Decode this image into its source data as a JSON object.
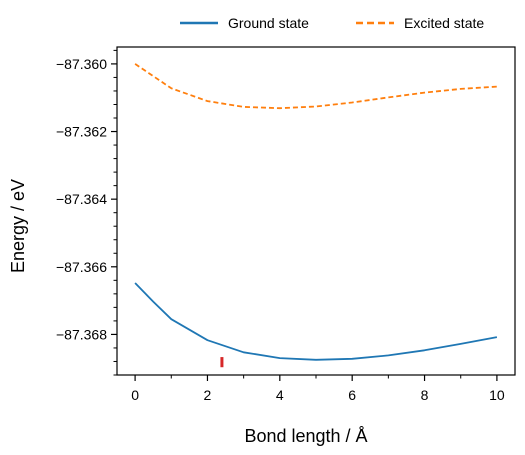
{
  "chart_data": {
    "type": "line",
    "title": "",
    "xlabel": "Bond length / Å",
    "ylabel": "Energy / eV",
    "xlim": [
      -0.5,
      10.5
    ],
    "ylim": [
      -87.3692,
      -87.3595
    ],
    "xticks": [
      0,
      2,
      4,
      6,
      8,
      10
    ],
    "xtick_labels": [
      "0",
      "2",
      "4",
      "6",
      "8",
      "10"
    ],
    "yticks": [
      -87.36,
      -87.362,
      -87.364,
      -87.366,
      -87.368
    ],
    "ytick_labels": [
      "−87.360",
      "−87.362",
      "−87.364",
      "−87.366",
      "−87.368"
    ],
    "legend_position": "top, above plot",
    "grid": false,
    "series": [
      {
        "name": "Ground state",
        "style": "solid",
        "color": "#1f77b4",
        "x": [
          0,
          0.5,
          1,
          2,
          3,
          4,
          5,
          6,
          7,
          8,
          9,
          10
        ],
        "values": [
          -87.36648,
          -87.36703,
          -87.36755,
          -87.36817,
          -87.36853,
          -87.3687,
          -87.36875,
          -87.36872,
          -87.36862,
          -87.36847,
          -87.36828,
          -87.36808
        ]
      },
      {
        "name": "Excited state",
        "style": "dashed",
        "color": "#ff7f0e",
        "x": [
          0,
          1,
          2,
          3,
          4,
          5,
          6,
          7,
          8,
          9,
          10
        ],
        "values": [
          -87.36,
          -87.36072,
          -87.3611,
          -87.36127,
          -87.36131,
          -87.36126,
          -87.36114,
          -87.36099,
          -87.36085,
          -87.36074,
          -87.36067
        ]
      }
    ],
    "marker": {
      "x": 2.4,
      "y_range": [
        -87.36867,
        -87.36897
      ],
      "color": "#d62728"
    }
  }
}
